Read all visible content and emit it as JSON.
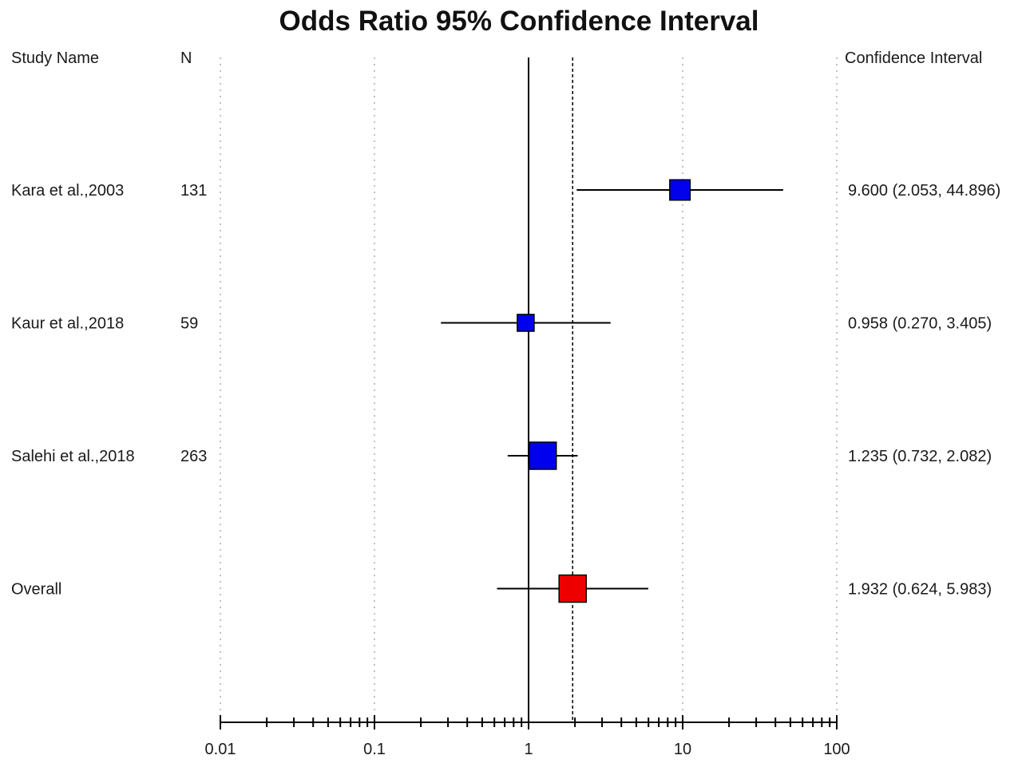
{
  "chart_data": {
    "type": "forest",
    "title": "Odds Ratio 95% Confidence Interval",
    "columns": {
      "study": "Study Name",
      "n": "N",
      "ci": "Confidence Interval"
    },
    "x_scale": "log",
    "xlim": [
      0.01,
      100
    ],
    "x_ticks": [
      "0.01",
      "0.1",
      "1",
      "10",
      "100"
    ],
    "null_line": 1,
    "pooled_line": 1.932,
    "grid": "vertical dotted at decades",
    "studies": [
      {
        "name": "Kara et al.,2003",
        "n": "131",
        "or": 9.6,
        "lo": 2.053,
        "hi": 44.896,
        "ci_text": "9.600 (2.053, 44.896)",
        "weight": 0.75,
        "color": "#0000ee"
      },
      {
        "name": "Kaur et al.,2018",
        "n": "59",
        "or": 0.958,
        "lo": 0.27,
        "hi": 3.405,
        "ci_text": "0.958 (0.270, 3.405)",
        "weight": 0.62,
        "color": "#0000ee"
      },
      {
        "name": "Salehi et al.,2018",
        "n": "263",
        "or": 1.235,
        "lo": 0.732,
        "hi": 2.082,
        "ci_text": "1.235 (0.732, 2.082)",
        "weight": 1.0,
        "color": "#0000ee"
      }
    ],
    "overall": {
      "name": "Overall",
      "n": "",
      "or": 1.932,
      "lo": 0.624,
      "hi": 5.983,
      "ci_text": "1.932 (0.624, 5.983)",
      "weight": 1.0,
      "color": "#ee0000"
    }
  }
}
